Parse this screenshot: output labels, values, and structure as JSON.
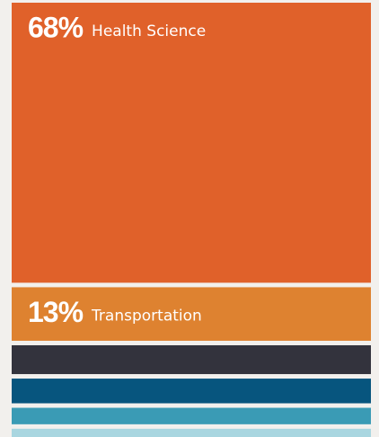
{
  "chart_data": {
    "type": "bar",
    "orientation": "stacked-vertical",
    "categories": [
      "Health Science",
      "Transportation",
      null,
      null,
      null,
      null
    ],
    "values": [
      68,
      13,
      7,
      6,
      4,
      2
    ],
    "value_labels": [
      "68%",
      "13%",
      null,
      null,
      null,
      null
    ],
    "colors": [
      "#e0612a",
      "#de8230",
      "#33333d",
      "#07557e",
      "#3a9bb5",
      "#a9d6e0"
    ]
  }
}
